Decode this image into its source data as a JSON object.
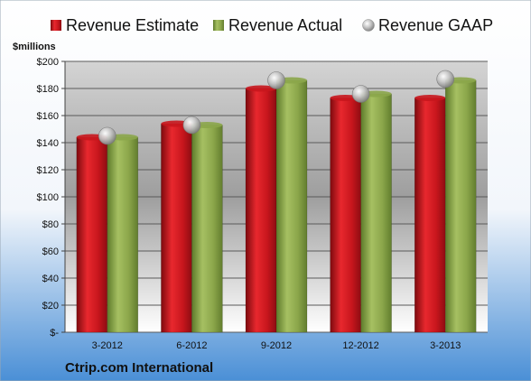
{
  "company": "Ctrip.com International",
  "chart_data": {
    "type": "bar",
    "ylabel": "$millions",
    "ylim": [
      0,
      200
    ],
    "yticks": [
      0,
      20,
      40,
      60,
      80,
      100,
      120,
      140,
      160,
      180,
      200
    ],
    "ytick_labels": [
      "$-",
      "$20",
      "$40",
      "$60",
      "$80",
      "$100",
      "$120",
      "$140",
      "$160",
      "$180",
      "$200"
    ],
    "categories": [
      "3-2012",
      "6-2012",
      "9-2012",
      "12-2012",
      "3-2013"
    ],
    "legend_position": "top",
    "grid": true,
    "series": [
      {
        "name": "Revenue Estimate",
        "type": "bar",
        "color": "#c8161d",
        "values": [
          144,
          154,
          180,
          173,
          173
        ]
      },
      {
        "name": "Revenue Actual",
        "type": "bar",
        "color": "#8ba64a",
        "values": [
          144,
          153,
          186,
          176,
          186
        ]
      },
      {
        "name": "Revenue GAAP",
        "type": "marker",
        "color": "#b8b8b8",
        "values": [
          145,
          153,
          186,
          176,
          187
        ]
      }
    ]
  }
}
